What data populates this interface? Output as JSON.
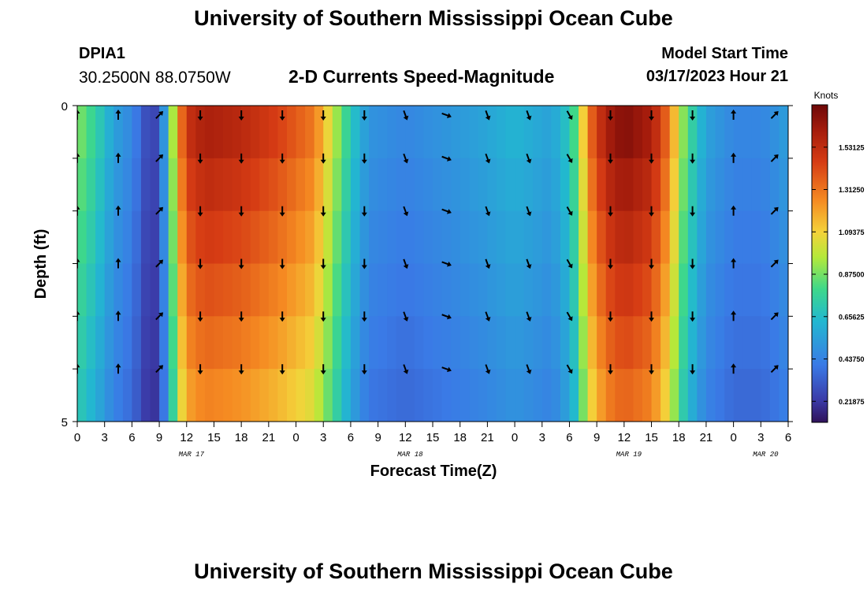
{
  "page": {
    "title": "University of Southern Mississippi Ocean Cube",
    "title_repeat": "University of Southern Mississippi Ocean Cube"
  },
  "header": {
    "station": "DPIA1",
    "coords": "30.2500N  88.0750W",
    "subtitle": "2-D Currents Speed-Magnitude",
    "model_start_label": "Model Start Time",
    "model_start_value": "03/17/2023 Hour 21"
  },
  "chart_data": {
    "type": "heatmap",
    "title": "2-D Currents Speed-Magnitude",
    "xlabel": "Forecast Time(Z)",
    "ylabel": "Depth (ft)",
    "x_ticks": [
      "0",
      "3",
      "6",
      "9",
      "12",
      "15",
      "18",
      "21",
      "0",
      "3",
      "6",
      "9",
      "12",
      "15",
      "18",
      "21",
      "0",
      "3",
      "6",
      "9",
      "12",
      "15",
      "18",
      "21",
      "0",
      "3",
      "6"
    ],
    "date_labels": [
      {
        "label": "MAR 17",
        "hour": 12
      },
      {
        "label": "MAR 18",
        "hour": 36
      },
      {
        "label": "MAR 19",
        "hour": 60
      },
      {
        "label": "MAR 20",
        "hour": 75
      }
    ],
    "x_range_hours": [
      0,
      78
    ],
    "y_ticks": [
      {
        "label": "0",
        "depth": 0
      },
      {
        "label": "5",
        "depth": 5
      }
    ],
    "ylim": [
      0,
      5
    ],
    "depth_layers": 6,
    "colorbar": {
      "label": "Knots",
      "ticks": [
        "1.53125",
        "1.31250",
        "1.09375",
        "0.87500",
        "0.65625",
        "0.43750",
        "0.21875"
      ],
      "tick_values": [
        1.53125,
        1.3125,
        1.09375,
        0.875,
        0.65625,
        0.4375,
        0.21875
      ],
      "range": [
        0.11,
        1.75
      ]
    },
    "speed_profile_surface_knots": [
      [
        0,
        0.9
      ],
      [
        2,
        0.75
      ],
      [
        4,
        0.55
      ],
      [
        6,
        0.45
      ],
      [
        7,
        0.35
      ],
      [
        8,
        0.22
      ],
      [
        9,
        0.3
      ],
      [
        10,
        0.7
      ],
      [
        11,
        1.2
      ],
      [
        12,
        1.5
      ],
      [
        14,
        1.6
      ],
      [
        18,
        1.55
      ],
      [
        22,
        1.45
      ],
      [
        26,
        1.3
      ],
      [
        28,
        1.0
      ],
      [
        30,
        0.7
      ],
      [
        32,
        0.5
      ],
      [
        36,
        0.45
      ],
      [
        40,
        0.5
      ],
      [
        44,
        0.55
      ],
      [
        48,
        0.62
      ],
      [
        52,
        0.55
      ],
      [
        54,
        0.7
      ],
      [
        55,
        0.9
      ],
      [
        56,
        1.3
      ],
      [
        58,
        1.6
      ],
      [
        60,
        1.7
      ],
      [
        63,
        1.6
      ],
      [
        65,
        1.3
      ],
      [
        66,
        1.0
      ],
      [
        67,
        0.8
      ],
      [
        69,
        0.55
      ],
      [
        72,
        0.45
      ],
      [
        75,
        0.45
      ],
      [
        77,
        0.5
      ],
      [
        78,
        0.55
      ]
    ],
    "arrow_times_hours": [
      0,
      4.5,
      9,
      13.5,
      18,
      22.5,
      27,
      31.5,
      36,
      40.5,
      45,
      49.5,
      54,
      58.5,
      63,
      67.5,
      72,
      76.5
    ],
    "arrow_directions_deg": [
      0,
      0,
      45,
      180,
      180,
      180,
      180,
      180,
      160,
      110,
      160,
      160,
      150,
      180,
      180,
      180,
      0,
      45
    ]
  }
}
